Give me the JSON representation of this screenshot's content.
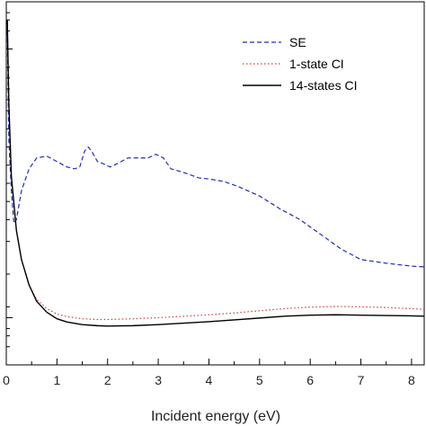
{
  "chart_data": {
    "type": "line",
    "title": "",
    "xlabel": "Incident energy (eV)",
    "ylabel": "",
    "xlim": [
      0,
      8.25
    ],
    "ylim": [
      0,
      1
    ],
    "x_ticks": [
      "0",
      "1",
      "2",
      "3",
      "4",
      "5",
      "6",
      "7",
      "8"
    ],
    "y_ticks_labeled": false,
    "grid": false,
    "legend_position": "top-right",
    "series": [
      {
        "name": "SE",
        "color": "#1f2fb0",
        "dash": "dashed",
        "points": [
          [
            0.02,
            0.92
          ],
          [
            0.05,
            0.62
          ],
          [
            0.1,
            0.48
          ],
          [
            0.15,
            0.39
          ],
          [
            0.2,
            0.4
          ],
          [
            0.3,
            0.48
          ],
          [
            0.45,
            0.54
          ],
          [
            0.6,
            0.57
          ],
          [
            0.8,
            0.575
          ],
          [
            1.0,
            0.56
          ],
          [
            1.2,
            0.545
          ],
          [
            1.35,
            0.54
          ],
          [
            1.45,
            0.545
          ],
          [
            1.55,
            0.59
          ],
          [
            1.62,
            0.6
          ],
          [
            1.7,
            0.585
          ],
          [
            1.8,
            0.56
          ],
          [
            1.9,
            0.555
          ],
          [
            2.05,
            0.545
          ],
          [
            2.2,
            0.555
          ],
          [
            2.4,
            0.57
          ],
          [
            2.6,
            0.57
          ],
          [
            2.8,
            0.57
          ],
          [
            2.95,
            0.58
          ],
          [
            3.1,
            0.57
          ],
          [
            3.25,
            0.54
          ],
          [
            3.5,
            0.53
          ],
          [
            3.8,
            0.515
          ],
          [
            4.0,
            0.512
          ],
          [
            4.3,
            0.505
          ],
          [
            4.6,
            0.49
          ],
          [
            5.0,
            0.465
          ],
          [
            5.4,
            0.43
          ],
          [
            5.8,
            0.4
          ],
          [
            6.2,
            0.36
          ],
          [
            6.6,
            0.32
          ],
          [
            7.0,
            0.29
          ],
          [
            7.5,
            0.28
          ],
          [
            8.0,
            0.272
          ],
          [
            8.25,
            0.27
          ]
        ]
      },
      {
        "name": "1-state CI",
        "color": "#d23a3a",
        "dash": "dotted",
        "points": [
          [
            0.02,
            0.95
          ],
          [
            0.05,
            0.72
          ],
          [
            0.1,
            0.52
          ],
          [
            0.2,
            0.37
          ],
          [
            0.3,
            0.29
          ],
          [
            0.45,
            0.22
          ],
          [
            0.6,
            0.18
          ],
          [
            0.8,
            0.155
          ],
          [
            1.0,
            0.14
          ],
          [
            1.2,
            0.133
          ],
          [
            1.5,
            0.127
          ],
          [
            1.8,
            0.125
          ],
          [
            2.0,
            0.125
          ],
          [
            2.5,
            0.127
          ],
          [
            3.0,
            0.13
          ],
          [
            3.5,
            0.134
          ],
          [
            4.0,
            0.138
          ],
          [
            4.5,
            0.143
          ],
          [
            5.0,
            0.149
          ],
          [
            5.5,
            0.155
          ],
          [
            6.0,
            0.159
          ],
          [
            6.5,
            0.161
          ],
          [
            7.0,
            0.16
          ],
          [
            7.5,
            0.158
          ],
          [
            8.0,
            0.155
          ],
          [
            8.25,
            0.153
          ]
        ]
      },
      {
        "name": "14-states CI",
        "color": "#000000",
        "dash": "solid",
        "points": [
          [
            0.02,
            0.95
          ],
          [
            0.05,
            0.72
          ],
          [
            0.1,
            0.52
          ],
          [
            0.2,
            0.37
          ],
          [
            0.3,
            0.29
          ],
          [
            0.45,
            0.22
          ],
          [
            0.6,
            0.175
          ],
          [
            0.8,
            0.145
          ],
          [
            1.0,
            0.127
          ],
          [
            1.2,
            0.118
          ],
          [
            1.5,
            0.111
          ],
          [
            1.8,
            0.108
          ],
          [
            2.0,
            0.107
          ],
          [
            2.5,
            0.108
          ],
          [
            3.0,
            0.111
          ],
          [
            3.5,
            0.115
          ],
          [
            4.0,
            0.119
          ],
          [
            4.5,
            0.124
          ],
          [
            5.0,
            0.129
          ],
          [
            5.5,
            0.134
          ],
          [
            6.0,
            0.137
          ],
          [
            6.5,
            0.138
          ],
          [
            7.0,
            0.137
          ],
          [
            7.5,
            0.136
          ],
          [
            8.0,
            0.135
          ],
          [
            8.25,
            0.134
          ]
        ]
      }
    ]
  }
}
